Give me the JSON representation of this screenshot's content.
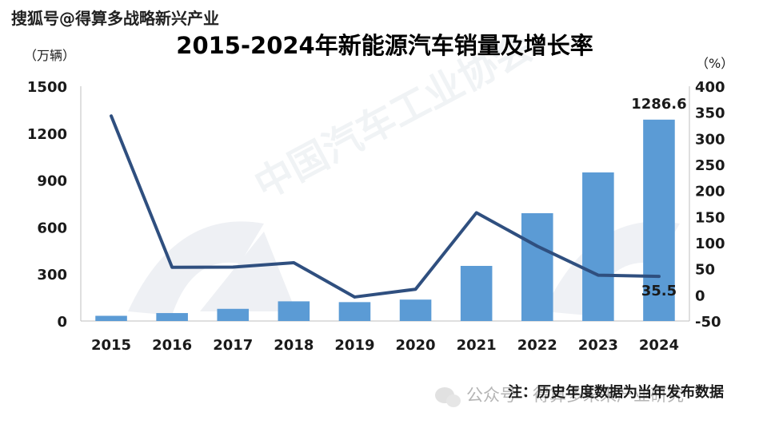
{
  "top_label": "搜狐号@得算多战略新兴产业",
  "footer_note": "注：历史年度数据为当年发布数据",
  "wechat_watermark": "公众号 · 得算多未来产业研究",
  "chart_data": {
    "type": "bar+line",
    "title": "2015-2024年新能源汽车销量及增长率",
    "y_left_unit": "（万辆）",
    "y_right_unit": "（%）",
    "categories": [
      "2015",
      "2016",
      "2017",
      "2018",
      "2019",
      "2020",
      "2021",
      "2022",
      "2023",
      "2024"
    ],
    "series": [
      {
        "type": "bar",
        "axis": "left",
        "values": [
          33.1,
          50.7,
          77.7,
          125.6,
          120.6,
          136.7,
          352.1,
          688.7,
          949.5,
          1286.6
        ]
      },
      {
        "type": "line",
        "axis": "right",
        "values": [
          343.0,
          53.0,
          53.3,
          61.7,
          -4.0,
          10.9,
          157.5,
          93.4,
          37.9,
          35.5
        ]
      }
    ],
    "y_left": {
      "min": 0,
      "max": 1500,
      "ticks": [
        0,
        300,
        600,
        900,
        1200,
        1500
      ]
    },
    "y_right": {
      "min": -50,
      "max": 400,
      "ticks": [
        -50,
        0,
        50,
        100,
        150,
        200,
        250,
        300,
        350,
        400
      ]
    },
    "data_labels": {
      "bar_2024": "1286.6",
      "line_2024": "35.5"
    },
    "colors": {
      "bar": "#5b9bd5",
      "line": "#2f4f7f"
    }
  }
}
